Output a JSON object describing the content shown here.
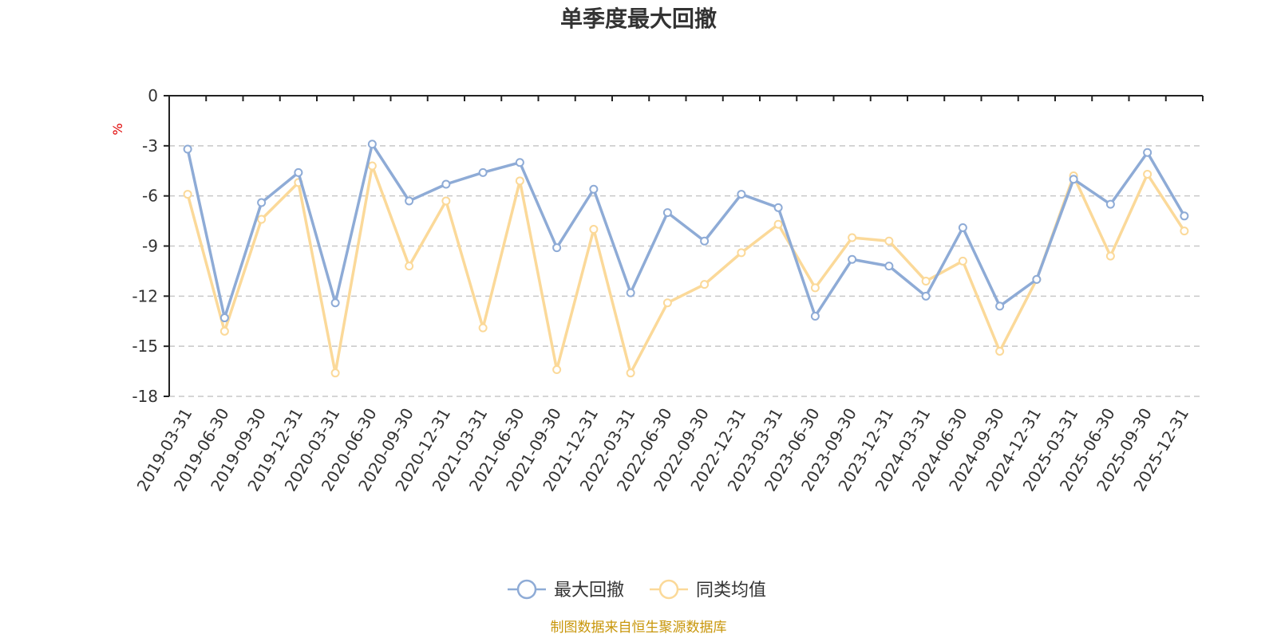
{
  "chart_data": {
    "type": "line",
    "title": "单季度最大回撤",
    "ylabel": "%",
    "ylim": [
      -18,
      0
    ],
    "yticks": [
      0,
      -3,
      -6,
      -9,
      -12,
      -15,
      -18
    ],
    "grid": true,
    "legend_position": "bottom",
    "categories": [
      "2019-03-31",
      "2019-06-30",
      "2019-09-30",
      "2019-12-31",
      "2020-03-31",
      "2020-06-30",
      "2020-09-30",
      "2020-12-31",
      "2021-03-31",
      "2021-06-30",
      "2021-09-30",
      "2021-12-31",
      "2022-03-31",
      "2022-06-30",
      "2022-09-30",
      "2022-12-31",
      "2023-03-31",
      "2023-06-30",
      "2023-09-30",
      "2023-12-31",
      "2024-03-31",
      "2024-06-30",
      "2024-09-30",
      "2024-12-31",
      "2025-03-31",
      "2025-06-30",
      "2025-09-30",
      "2025-12-31"
    ],
    "series": [
      {
        "name": "最大回撤",
        "color": "#8eabd6",
        "values": [
          -3.2,
          -13.3,
          -6.4,
          -4.6,
          -12.4,
          -2.9,
          -6.3,
          -5.3,
          -4.6,
          -4.0,
          -9.1,
          -5.6,
          -11.8,
          -7.0,
          -8.7,
          -5.9,
          -6.7,
          -13.2,
          -9.8,
          -10.2,
          -12.0,
          -7.9,
          -12.6,
          -11.0,
          -5.0,
          -6.5,
          -3.4,
          -7.2
        ]
      },
      {
        "name": "同类均值",
        "color": "#fbd999",
        "values": [
          -5.9,
          -14.1,
          -7.4,
          -5.2,
          -16.6,
          -4.2,
          -10.2,
          -6.3,
          -13.9,
          -5.1,
          -16.4,
          -8.0,
          -16.6,
          -12.4,
          -11.3,
          -9.4,
          -7.7,
          -11.5,
          -8.5,
          -8.7,
          -11.1,
          -9.9,
          -15.3,
          -11.0,
          -4.8,
          -9.6,
          -4.7,
          -8.1
        ]
      }
    ]
  },
  "footer": {
    "source": "制图数据来自恒生聚源数据库"
  }
}
